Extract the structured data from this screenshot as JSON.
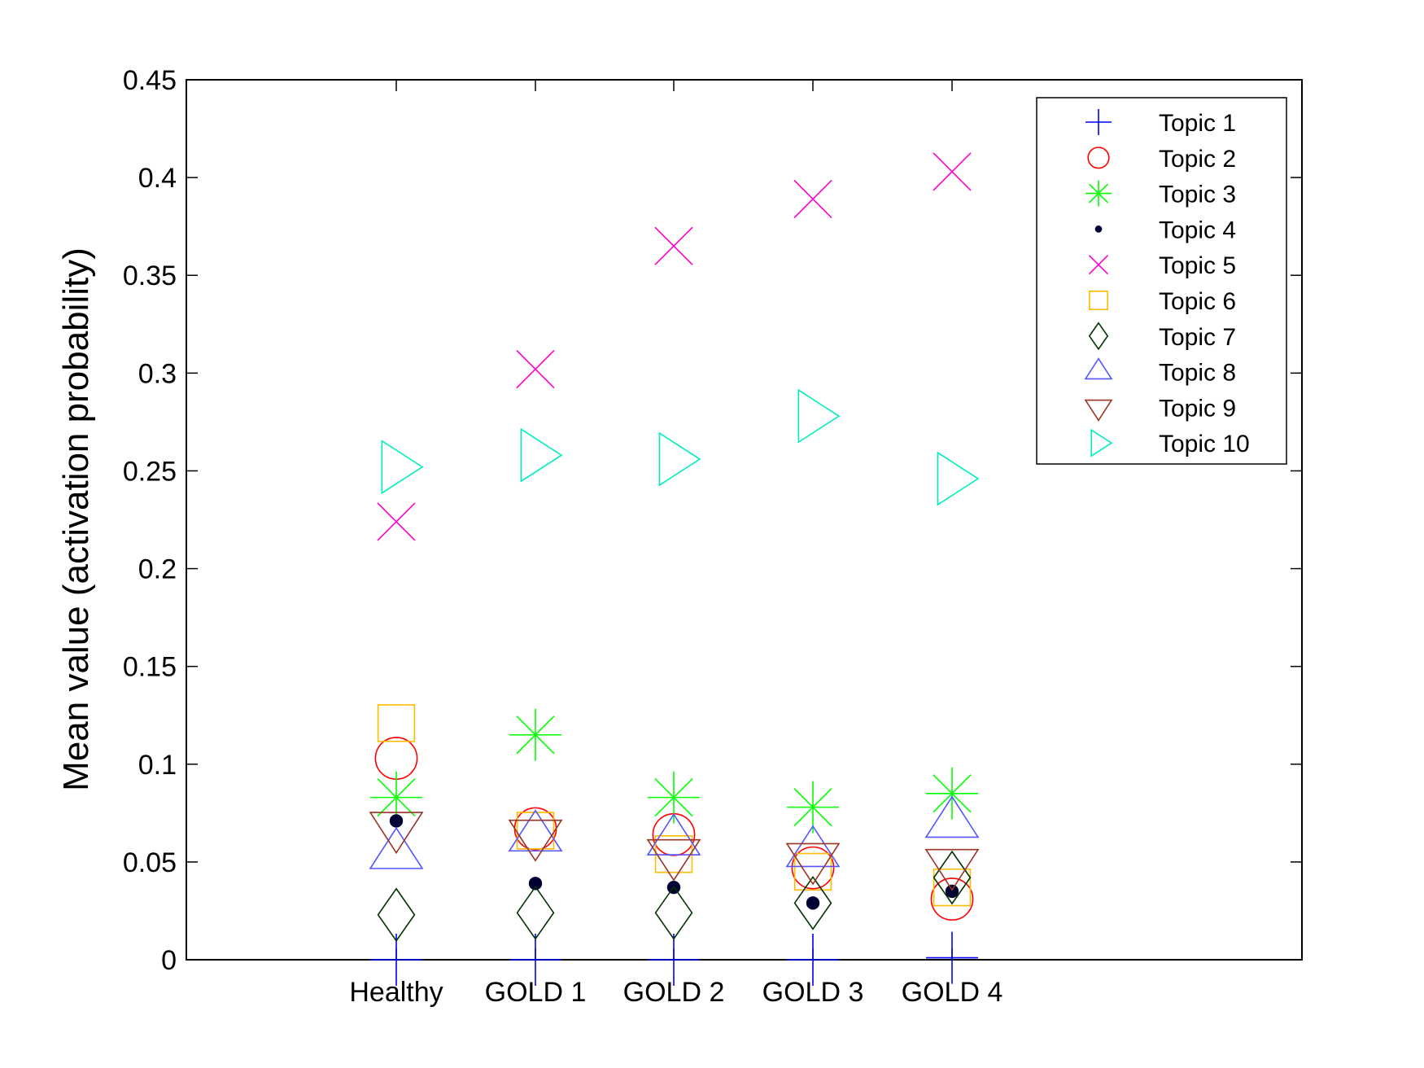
{
  "chart_data": {
    "type": "scatter",
    "categories": [
      "Healthy",
      "GOLD 1",
      "GOLD 2",
      "GOLD 3",
      "GOLD 4"
    ],
    "ylabel": "Mean value (activation probability)",
    "xlabel": "",
    "ylim": [
      0,
      0.45
    ],
    "yticks": [
      0,
      0.05,
      0.1,
      0.15,
      0.2,
      0.25,
      0.3,
      0.35,
      0.4,
      0.45
    ],
    "ytick_labels": [
      "0",
      "0.05",
      "0.1",
      "0.15",
      "0.2",
      "0.25",
      "0.3",
      "0.35",
      "0.4",
      "0.45"
    ],
    "grid": false,
    "legend_position": "top-right",
    "series": [
      {
        "name": "Topic 1",
        "marker": "plus",
        "color": "#0000ff",
        "values": [
          0.0,
          0.0,
          0.0,
          0.0,
          0.001
        ]
      },
      {
        "name": "Topic 2",
        "marker": "circle",
        "color": "#ff0000",
        "values": [
          0.103,
          0.067,
          0.064,
          0.047,
          0.031
        ]
      },
      {
        "name": "Topic 3",
        "marker": "asterisk",
        "color": "#00ff00",
        "values": [
          0.083,
          0.115,
          0.083,
          0.078,
          0.085
        ]
      },
      {
        "name": "Topic 4",
        "marker": "point",
        "color": "#000033",
        "values": [
          0.071,
          0.039,
          0.037,
          0.029,
          0.035
        ]
      },
      {
        "name": "Topic 5",
        "marker": "x",
        "color": "#ff00cc",
        "values": [
          0.224,
          0.302,
          0.365,
          0.389,
          0.403
        ]
      },
      {
        "name": "Topic 6",
        "marker": "square",
        "color": "#ffbb00",
        "values": [
          0.121,
          0.066,
          0.054,
          0.045,
          0.037
        ]
      },
      {
        "name": "Topic 7",
        "marker": "diamond",
        "color": "#003300",
        "values": [
          0.023,
          0.024,
          0.024,
          0.029,
          0.042
        ]
      },
      {
        "name": "Topic 8",
        "marker": "triangle-up",
        "color": "#5555ff",
        "values": [
          0.054,
          0.063,
          0.061,
          0.055,
          0.07
        ]
      },
      {
        "name": "Topic 9",
        "marker": "triangle-down",
        "color": "#993322",
        "values": [
          0.068,
          0.064,
          0.054,
          0.052,
          0.049
        ]
      },
      {
        "name": "Topic 10",
        "marker": "triangle-right",
        "color": "#00eebb",
        "values": [
          0.252,
          0.258,
          0.256,
          0.278,
          0.246
        ]
      }
    ]
  }
}
